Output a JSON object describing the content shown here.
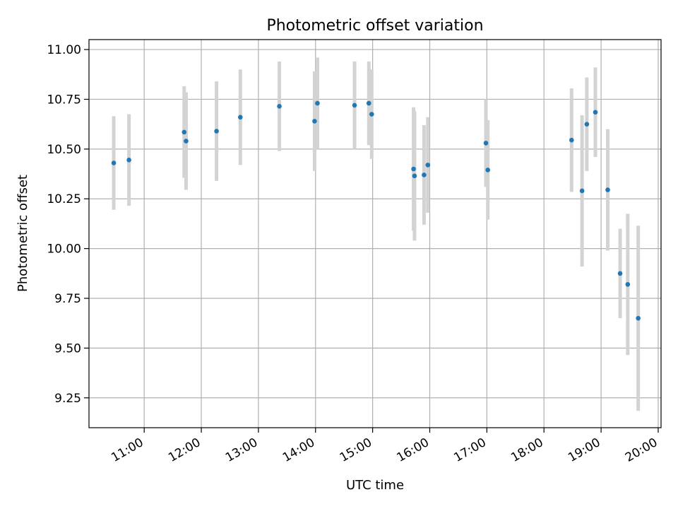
{
  "chart_data": {
    "type": "scatter",
    "title": "Photometric offset variation",
    "xlabel": "UTC time",
    "ylabel": "Photometric offset",
    "xlim": [
      "10:02",
      "20:03"
    ],
    "ylim": [
      9.1,
      11.05
    ],
    "x_ticks": [
      "11:00",
      "12:00",
      "13:00",
      "14:00",
      "15:00",
      "16:00",
      "17:00",
      "18:00",
      "19:00",
      "20:00"
    ],
    "y_ticks": [
      "9.25",
      "9.50",
      "9.75",
      "10.00",
      "10.25",
      "10.50",
      "10.75",
      "11.00"
    ],
    "grid": true,
    "colors": {
      "marker": "#1f77b4",
      "errorbar": "#d3d3d3",
      "grid": "#b0b0b0"
    },
    "points": [
      {
        "x": "10:28",
        "y": 10.43,
        "yerr": 0.235
      },
      {
        "x": "10:44",
        "y": 10.445,
        "yerr": 0.23
      },
      {
        "x": "11:42",
        "y": 10.585,
        "yerr": 0.23
      },
      {
        "x": "11:44",
        "y": 10.54,
        "yerr": 0.245
      },
      {
        "x": "12:16",
        "y": 10.59,
        "yerr": 0.25
      },
      {
        "x": "12:41",
        "y": 10.66,
        "yerr": 0.24
      },
      {
        "x": "13:22",
        "y": 10.715,
        "yerr": 0.225
      },
      {
        "x": "13:59",
        "y": 10.64,
        "yerr": 0.25
      },
      {
        "x": "14:02",
        "y": 10.73,
        "yerr": 0.23
      },
      {
        "x": "14:41",
        "y": 10.72,
        "yerr": 0.22
      },
      {
        "x": "14:56",
        "y": 10.73,
        "yerr": 0.21
      },
      {
        "x": "14:59",
        "y": 10.675,
        "yerr": 0.225
      },
      {
        "x": "15:43",
        "y": 10.4,
        "yerr": 0.31
      },
      {
        "x": "15:44",
        "y": 10.365,
        "yerr": 0.325
      },
      {
        "x": "15:54",
        "y": 10.37,
        "yerr": 0.25
      },
      {
        "x": "15:58",
        "y": 10.42,
        "yerr": 0.24
      },
      {
        "x": "16:59",
        "y": 10.53,
        "yerr": 0.22
      },
      {
        "x": "17:01",
        "y": 10.395,
        "yerr": 0.25
      },
      {
        "x": "18:29",
        "y": 10.545,
        "yerr": 0.26
      },
      {
        "x": "18:40",
        "y": 10.29,
        "yerr": 0.38
      },
      {
        "x": "18:45",
        "y": 10.625,
        "yerr": 0.235
      },
      {
        "x": "18:54",
        "y": 10.685,
        "yerr": 0.225
      },
      {
        "x": "19:07",
        "y": 10.295,
        "yerr": 0.305
      },
      {
        "x": "19:20",
        "y": 9.875,
        "yerr": 0.225
      },
      {
        "x": "19:28",
        "y": 9.82,
        "yerr": 0.355
      },
      {
        "x": "19:39",
        "y": 9.65,
        "yerr": 0.465
      }
    ]
  }
}
